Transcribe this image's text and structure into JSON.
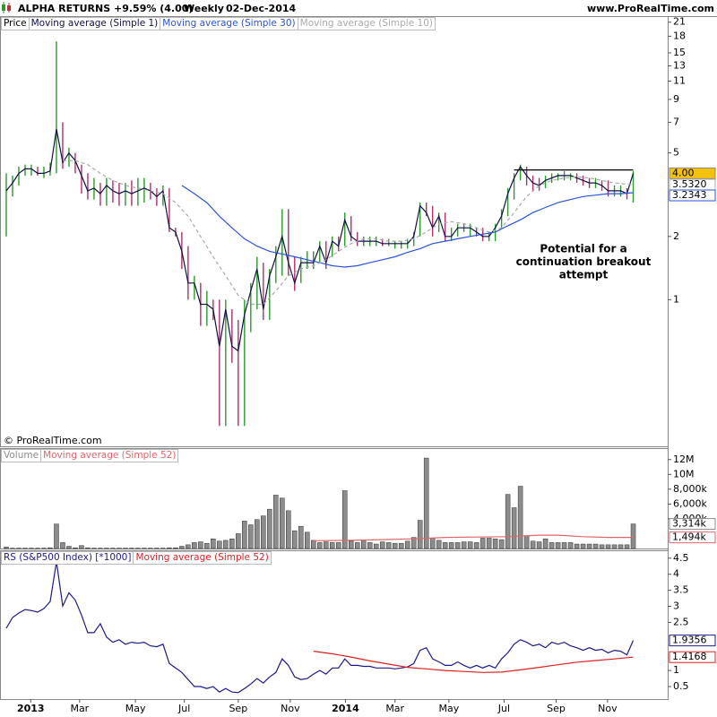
{
  "header": {
    "symbol": "ALPHA RETURNS",
    "change": "+9.59% (4.00)",
    "period": "Weekly",
    "date": "02-Dec-2014",
    "site": "www.ProRealTime.com"
  },
  "copyright": "© ProRealTime.com",
  "chart_data": [
    {
      "type": "ohlc",
      "legend_title": "Price",
      "log_scale": true,
      "up_color": "#2a9a2a",
      "down_color": "#b0306a",
      "x": [
        0,
        1,
        2,
        3,
        4,
        5,
        6,
        7,
        8,
        9,
        10,
        11,
        12,
        13,
        14,
        15,
        16,
        17,
        18,
        19,
        20,
        21,
        22,
        23,
        24,
        25,
        26,
        27,
        28,
        29,
        30,
        31,
        32,
        33,
        34,
        35,
        36,
        37,
        38,
        39,
        40,
        41,
        42,
        43,
        44,
        45,
        46,
        47,
        48,
        49,
        50,
        51,
        52,
        53,
        54,
        55,
        56,
        57,
        58,
        59,
        60,
        61,
        62,
        63,
        64,
        65,
        66,
        67,
        68,
        69,
        70,
        71,
        72,
        73,
        74,
        75,
        76,
        77,
        78,
        79,
        80,
        81,
        82,
        83,
        84,
        85,
        86,
        87,
        88,
        89,
        90,
        91,
        92,
        93,
        94,
        95,
        96,
        97,
        98,
        99,
        100
      ],
      "xlim": [
        -1,
        105.5
      ],
      "high": [
        4.0,
        3.9,
        4.3,
        4.4,
        4.4,
        4.3,
        4.3,
        4.5,
        17,
        7.0,
        5.3,
        5.0,
        4.4,
        4.0,
        3.8,
        3.6,
        3.8,
        3.7,
        3.6,
        3.6,
        3.7,
        3.8,
        3.8,
        3.6,
        3.4,
        3.5,
        3.4,
        2.2,
        2.1,
        1.8,
        1.3,
        1.2,
        1.1,
        1.0,
        1.0,
        1.0,
        0.9,
        0.8,
        1.0,
        1.2,
        1.6,
        1.5,
        1.4,
        1.8,
        2.7,
        2.7,
        1.6,
        1.6,
        1.7,
        1.7,
        1.9,
        1.9,
        2.0,
        2.0,
        2.6,
        2.5,
        2.1,
        2.0,
        2.0,
        2.0,
        1.95,
        1.95,
        1.9,
        1.9,
        1.95,
        2.1,
        2.9,
        2.9,
        2.8,
        2.6,
        2.6,
        2.2,
        2.3,
        2.3,
        2.3,
        2.2,
        2.2,
        2.1,
        2.3,
        2.7,
        3.4,
        4.0,
        4.4,
        4.3,
        3.9,
        3.8,
        3.9,
        4.0,
        4.0,
        4.1,
        4.0,
        4.0,
        3.9,
        3.8,
        3.8,
        3.7,
        3.7,
        3.5,
        3.5,
        3.4,
        4.1
      ],
      "low": [
        2.0,
        3.1,
        3.5,
        3.9,
        3.9,
        3.9,
        3.8,
        3.9,
        4.0,
        4.2,
        4.3,
        4.0,
        3.2,
        3.0,
        3.0,
        2.8,
        2.8,
        2.9,
        2.8,
        2.8,
        2.8,
        2.8,
        2.9,
        3.0,
        2.8,
        2.8,
        2.1,
        2.0,
        1.4,
        1.0,
        1.0,
        0.75,
        0.75,
        0.8,
        0.25,
        0.25,
        0.5,
        0.25,
        0.25,
        0.7,
        0.9,
        0.8,
        0.8,
        1.2,
        1.3,
        1.3,
        1.1,
        1.2,
        1.4,
        1.4,
        1.5,
        1.4,
        1.6,
        1.7,
        1.8,
        1.9,
        1.8,
        1.8,
        1.8,
        1.8,
        1.8,
        1.8,
        1.75,
        1.75,
        1.75,
        1.8,
        2.0,
        2.5,
        2.0,
        2.1,
        1.9,
        1.9,
        2.0,
        2.1,
        2.0,
        2.0,
        1.9,
        1.9,
        1.9,
        2.2,
        2.5,
        3.0,
        3.7,
        3.5,
        3.3,
        3.3,
        3.4,
        3.6,
        3.7,
        3.7,
        3.7,
        3.6,
        3.5,
        3.4,
        3.4,
        3.3,
        3.1,
        3.1,
        3.1,
        3.0,
        2.9
      ],
      "series": [
        {
          "name": "Moving average (Simple 1)",
          "color": "#10104a",
          "label_fill": "#f4c20d",
          "last_label": "4.00",
          "values": [
            3.3,
            3.6,
            4.0,
            4.2,
            4.2,
            4.0,
            4.0,
            4.1,
            6.5,
            4.5,
            5.0,
            4.6,
            3.9,
            3.3,
            3.4,
            3.2,
            3.5,
            3.3,
            3.2,
            3.3,
            3.2,
            3.3,
            3.4,
            3.3,
            3.1,
            3.3,
            2.2,
            2.1,
            1.7,
            1.2,
            1.2,
            0.95,
            0.95,
            0.9,
            0.6,
            0.9,
            0.6,
            0.57,
            0.85,
            1.1,
            1.4,
            0.9,
            1.3,
            1.6,
            2.0,
            1.5,
            1.2,
            1.5,
            1.5,
            1.5,
            1.8,
            1.5,
            1.9,
            1.8,
            2.4,
            2.0,
            1.9,
            1.9,
            1.9,
            1.9,
            1.85,
            1.85,
            1.85,
            1.85,
            1.85,
            2.0,
            2.8,
            2.6,
            2.2,
            2.5,
            2.0,
            2.0,
            2.2,
            2.2,
            2.2,
            2.1,
            2.0,
            2.0,
            2.2,
            2.5,
            3.2,
            3.8,
            4.3,
            3.9,
            3.6,
            3.5,
            3.7,
            3.8,
            3.9,
            3.9,
            3.9,
            3.8,
            3.7,
            3.6,
            3.6,
            3.5,
            3.3,
            3.3,
            3.3,
            3.2,
            4.0
          ]
        },
        {
          "name": "Moving average (Simple 30)",
          "color": "#2a55d8",
          "last_label": "3.2343",
          "x": [
            28,
            30,
            32,
            34,
            36,
            38,
            40,
            42,
            44,
            46,
            48,
            50,
            52,
            54,
            56,
            58,
            60,
            62,
            64,
            66,
            68,
            70,
            72,
            74,
            76,
            78,
            80,
            82,
            84,
            86,
            88,
            90,
            92,
            94,
            96,
            98,
            100
          ],
          "values": [
            3.5,
            3.2,
            2.9,
            2.5,
            2.2,
            1.95,
            1.8,
            1.7,
            1.65,
            1.6,
            1.55,
            1.5,
            1.45,
            1.43,
            1.45,
            1.5,
            1.55,
            1.6,
            1.68,
            1.75,
            1.85,
            1.9,
            1.95,
            2.0,
            2.05,
            2.1,
            2.25,
            2.4,
            2.6,
            2.75,
            2.9,
            3.0,
            3.1,
            3.15,
            3.2,
            3.2,
            3.2343
          ]
        },
        {
          "name": "Moving average (Simple 10)",
          "color": "#aaaaaa",
          "dashed": true,
          "last_label": "3.5320",
          "x": [
            9,
            11,
            13,
            15,
            17,
            19,
            21,
            23,
            25,
            27,
            29,
            31,
            33,
            35,
            37,
            39,
            41,
            43,
            45,
            47,
            49,
            51,
            53,
            55,
            57,
            59,
            61,
            63,
            65,
            67,
            69,
            71,
            73,
            75,
            77,
            79,
            81,
            83,
            85,
            87,
            89,
            91,
            93,
            95,
            97,
            99,
            100
          ],
          "values": [
            4.6,
            4.6,
            4.4,
            4.0,
            3.7,
            3.5,
            3.4,
            3.3,
            3.2,
            2.9,
            2.5,
            2.0,
            1.6,
            1.3,
            1.05,
            0.95,
            0.95,
            1.1,
            1.3,
            1.4,
            1.45,
            1.55,
            1.7,
            1.85,
            1.95,
            1.95,
            1.9,
            1.9,
            1.95,
            2.1,
            2.3,
            2.35,
            2.3,
            2.2,
            2.1,
            2.2,
            2.6,
            3.1,
            3.5,
            3.7,
            3.8,
            3.85,
            3.8,
            3.7,
            3.6,
            3.55,
            3.532
          ]
        }
      ],
      "resistance": {
        "value": 4.15,
        "x": [
          81,
          100
        ],
        "color": "#000000"
      },
      "annotation": [
        "Potential for a",
        "continuation breakout",
        "attempt"
      ],
      "ylim": [
        0.2,
        22
      ],
      "yticks": [
        1,
        2,
        5,
        7,
        9,
        11,
        13,
        15,
        18,
        21
      ]
    },
    {
      "type": "volume",
      "legend_title": "Volume",
      "color": "#8c8c8c",
      "last_label": "3,314k",
      "x": [
        0,
        1,
        2,
        3,
        4,
        5,
        6,
        7,
        8,
        9,
        10,
        11,
        12,
        13,
        14,
        15,
        16,
        17,
        18,
        19,
        20,
        21,
        22,
        23,
        24,
        25,
        26,
        27,
        28,
        29,
        30,
        31,
        32,
        33,
        34,
        35,
        36,
        37,
        38,
        39,
        40,
        41,
        42,
        43,
        44,
        45,
        46,
        47,
        48,
        49,
        50,
        51,
        52,
        53,
        54,
        55,
        56,
        57,
        58,
        59,
        60,
        61,
        62,
        63,
        64,
        65,
        66,
        67,
        68,
        69,
        70,
        71,
        72,
        73,
        74,
        75,
        76,
        77,
        78,
        79,
        80,
        81,
        82,
        83,
        84,
        85,
        86,
        87,
        88,
        89,
        90,
        91,
        92,
        93,
        94,
        95,
        96,
        97,
        98,
        99,
        100
      ],
      "xlim": [
        -1,
        105.5
      ],
      "values": [
        200000,
        50000,
        50000,
        50000,
        50000,
        50000,
        50000,
        100000,
        3300000,
        800000,
        300000,
        100000,
        400000,
        100000,
        50000,
        50000,
        50000,
        50000,
        50000,
        50000,
        50000,
        50000,
        50000,
        50000,
        50000,
        50000,
        100000,
        100000,
        300000,
        500000,
        800000,
        900000,
        700000,
        1300000,
        1000000,
        1100000,
        1300000,
        2000000,
        3700000,
        3200000,
        3900000,
        4400000,
        5300000,
        7200000,
        6800000,
        5100000,
        2400000,
        3000000,
        2200000,
        1100000,
        800000,
        900000,
        800000,
        800000,
        7800000,
        1000000,
        800000,
        1000000,
        800000,
        600000,
        900000,
        800000,
        700000,
        700000,
        1000000,
        1500000,
        3800000,
        12200000,
        1400000,
        1100000,
        800000,
        800000,
        800000,
        900000,
        900000,
        800000,
        1400000,
        1400000,
        1300000,
        1200000,
        7300000,
        5500000,
        8400000,
        1700000,
        1000000,
        900000,
        1300000,
        800000,
        800000,
        800000,
        800000,
        600000,
        600000,
        600000,
        600000,
        500000,
        500000,
        500000,
        500000,
        500000,
        3314000
      ],
      "series": [
        {
          "name": "Moving average (Simple 52)",
          "color": "#e06666",
          "last_label": "1,494k",
          "x": [
            49,
            55,
            60,
            65,
            70,
            75,
            80,
            85,
            88,
            92,
            96,
            100
          ],
          "values": [
            1050000,
            1100000,
            1200000,
            1300000,
            1500000,
            1550000,
            1600000,
            1800000,
            1800000,
            1600000,
            1500000,
            1494000
          ]
        }
      ],
      "ylim": [
        0,
        13300000
      ],
      "yticks": [
        {
          "value": 12000000,
          "label": "12M"
        },
        {
          "value": 10000000,
          "label": "10M"
        },
        {
          "value": 8000000,
          "label": "8,000k"
        },
        {
          "value": 6000000,
          "label": "6,000k"
        },
        {
          "value": 4000000,
          "label": "4,000k"
        }
      ]
    },
    {
      "type": "line",
      "x": [
        0,
        1,
        2,
        3,
        4,
        5,
        6,
        7,
        8,
        9,
        10,
        11,
        12,
        13,
        14,
        15,
        16,
        17,
        18,
        19,
        20,
        21,
        22,
        23,
        24,
        25,
        26,
        27,
        28,
        29,
        30,
        31,
        32,
        33,
        34,
        35,
        36,
        37,
        38,
        39,
        40,
        41,
        42,
        43,
        44,
        45,
        46,
        47,
        48,
        49,
        50,
        51,
        52,
        53,
        54,
        55,
        56,
        57,
        58,
        59,
        60,
        61,
        62,
        63,
        64,
        65,
        66,
        67,
        68,
        69,
        70,
        71,
        72,
        73,
        74,
        75,
        76,
        77,
        78,
        79,
        80,
        81,
        82,
        83,
        84,
        85,
        86,
        87,
        88,
        89,
        90,
        91,
        92,
        93,
        94,
        95,
        96,
        97,
        98,
        99,
        100
      ],
      "xlim": [
        -1,
        105.5
      ],
      "series": [
        {
          "name": "RS (S&P500 Index) [*1000]",
          "color": "#1a1a8c",
          "last_label": "1.9356",
          "values": [
            2.32,
            2.65,
            2.79,
            2.9,
            2.87,
            2.82,
            2.93,
            3.15,
            4.39,
            3.01,
            3.42,
            3.2,
            2.73,
            2.18,
            2.18,
            2.46,
            2.04,
            1.88,
            1.96,
            1.82,
            1.88,
            1.85,
            1.88,
            1.77,
            1.74,
            1.82,
            1.22,
            1.08,
            0.94,
            0.72,
            0.5,
            0.5,
            0.44,
            0.5,
            0.33,
            0.44,
            0.33,
            0.31,
            0.44,
            0.58,
            0.75,
            0.61,
            0.8,
            0.94,
            1.36,
            1.16,
            0.8,
            0.72,
            0.75,
            0.89,
            1.0,
            0.89,
            1.08,
            1.08,
            1.36,
            1.16,
            1.16,
            1.13,
            1.13,
            1.08,
            1.08,
            1.08,
            1.05,
            1.08,
            1.11,
            1.22,
            1.63,
            1.71,
            1.36,
            1.27,
            1.16,
            1.16,
            1.27,
            1.16,
            1.08,
            1.16,
            1.08,
            1.16,
            1.08,
            1.36,
            1.55,
            1.82,
            1.96,
            1.88,
            1.77,
            1.82,
            1.71,
            1.88,
            1.82,
            1.88,
            1.77,
            1.71,
            1.63,
            1.71,
            1.63,
            1.66,
            1.55,
            1.63,
            1.6,
            1.49,
            1.9356
          ]
        },
        {
          "name": "Moving average (Simple 52)",
          "color": "#e02020",
          "last_label": "1.4168",
          "x": [
            49,
            52,
            55,
            58,
            61,
            64,
            67,
            70,
            73,
            76,
            79,
            82,
            85,
            88,
            91,
            94,
            97,
            100
          ],
          "values": [
            1.6,
            1.52,
            1.42,
            1.3,
            1.2,
            1.1,
            1.05,
            1.0,
            0.97,
            0.94,
            0.95,
            1.02,
            1.1,
            1.18,
            1.26,
            1.31,
            1.36,
            1.4168
          ]
        }
      ],
      "ylim": [
        0.11,
        4.69
      ],
      "yticks": [
        0.5,
        1,
        2.5,
        3,
        3.5,
        4,
        4.5
      ],
      "xticks": [
        {
          "value": 3.9,
          "label": "2013"
        },
        {
          "value": 11.7,
          "label": "Mar"
        },
        {
          "value": 20.6,
          "label": "May"
        },
        {
          "value": 28.4,
          "label": "Jul"
        },
        {
          "value": 37,
          "label": "Sep"
        },
        {
          "value": 45.3,
          "label": "Nov"
        },
        {
          "value": 54.1,
          "label": "2014"
        },
        {
          "value": 62,
          "label": "Mar"
        },
        {
          "value": 70.6,
          "label": "May"
        },
        {
          "value": 79.4,
          "label": "Jul"
        },
        {
          "value": 87.7,
          "label": "Sep"
        },
        {
          "value": 95.9,
          "label": "Nov"
        }
      ]
    }
  ]
}
